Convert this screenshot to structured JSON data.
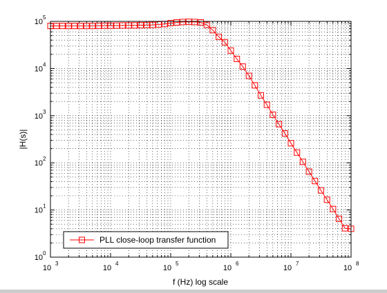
{
  "chart_data": {
    "type": "line",
    "xscale": "log",
    "yscale": "log",
    "xlim": [
      1000,
      100000000
    ],
    "ylim": [
      1,
      100000
    ],
    "xlabel": "f (Hz) log scale",
    "ylabel": "|H(s)|",
    "grid": true,
    "legend_position": "bottom-left",
    "x_ticks": [
      1000,
      10000,
      100000,
      1000000,
      10000000,
      100000000
    ],
    "y_ticks": [
      1,
      10,
      100,
      1000,
      10000,
      100000
    ],
    "x_tick_labels": [
      {
        "base": "10",
        "exp": "3"
      },
      {
        "base": "10",
        "exp": "4"
      },
      {
        "base": "10",
        "exp": "5"
      },
      {
        "base": "10",
        "exp": "6"
      },
      {
        "base": "10",
        "exp": "7"
      },
      {
        "base": "10",
        "exp": "8"
      }
    ],
    "y_tick_labels": [
      {
        "base": "10",
        "exp": "0"
      },
      {
        "base": "10",
        "exp": "1"
      },
      {
        "base": "10",
        "exp": "2"
      },
      {
        "base": "10",
        "exp": "3"
      },
      {
        "base": "10",
        "exp": "4"
      },
      {
        "base": "10",
        "exp": "5"
      }
    ],
    "series": [
      {
        "name": "PLL close-loop transfer function",
        "color": "#ff0000",
        "marker": "square",
        "x": [
          1000,
          1260,
          1580,
          2000,
          2510,
          3160,
          3980,
          5010,
          6310,
          7940,
          10000,
          12600,
          15800,
          20000,
          25100,
          31600,
          39800,
          50100,
          63100,
          79400,
          100000,
          126000,
          158000,
          200000,
          251000,
          316000,
          398000,
          501000,
          631000,
          794000,
          1000000,
          1260000,
          1580000,
          2000000,
          2510000,
          3160000,
          3980000,
          5010000,
          6310000,
          7940000,
          10000000,
          12600000,
          15800000,
          20000000,
          25100000,
          31600000,
          39800000,
          50100000,
          63100000,
          79400000,
          100000000
        ],
        "y": [
          80000,
          80000,
          80000,
          80000,
          80000,
          80000,
          80000,
          80000,
          80500,
          81000,
          81000,
          81500,
          82000,
          82000,
          82500,
          83000,
          83500,
          84000,
          86000,
          88000,
          92000,
          95000,
          97000,
          98000,
          97000,
          95000,
          84000,
          65000,
          47000,
          36000,
          24000,
          16000,
          11000,
          7000,
          4400,
          2700,
          1700,
          1050,
          660,
          420,
          260,
          165,
          105,
          65,
          41,
          26,
          16.5,
          10.5,
          6.5,
          4.1,
          4
        ]
      }
    ]
  }
}
